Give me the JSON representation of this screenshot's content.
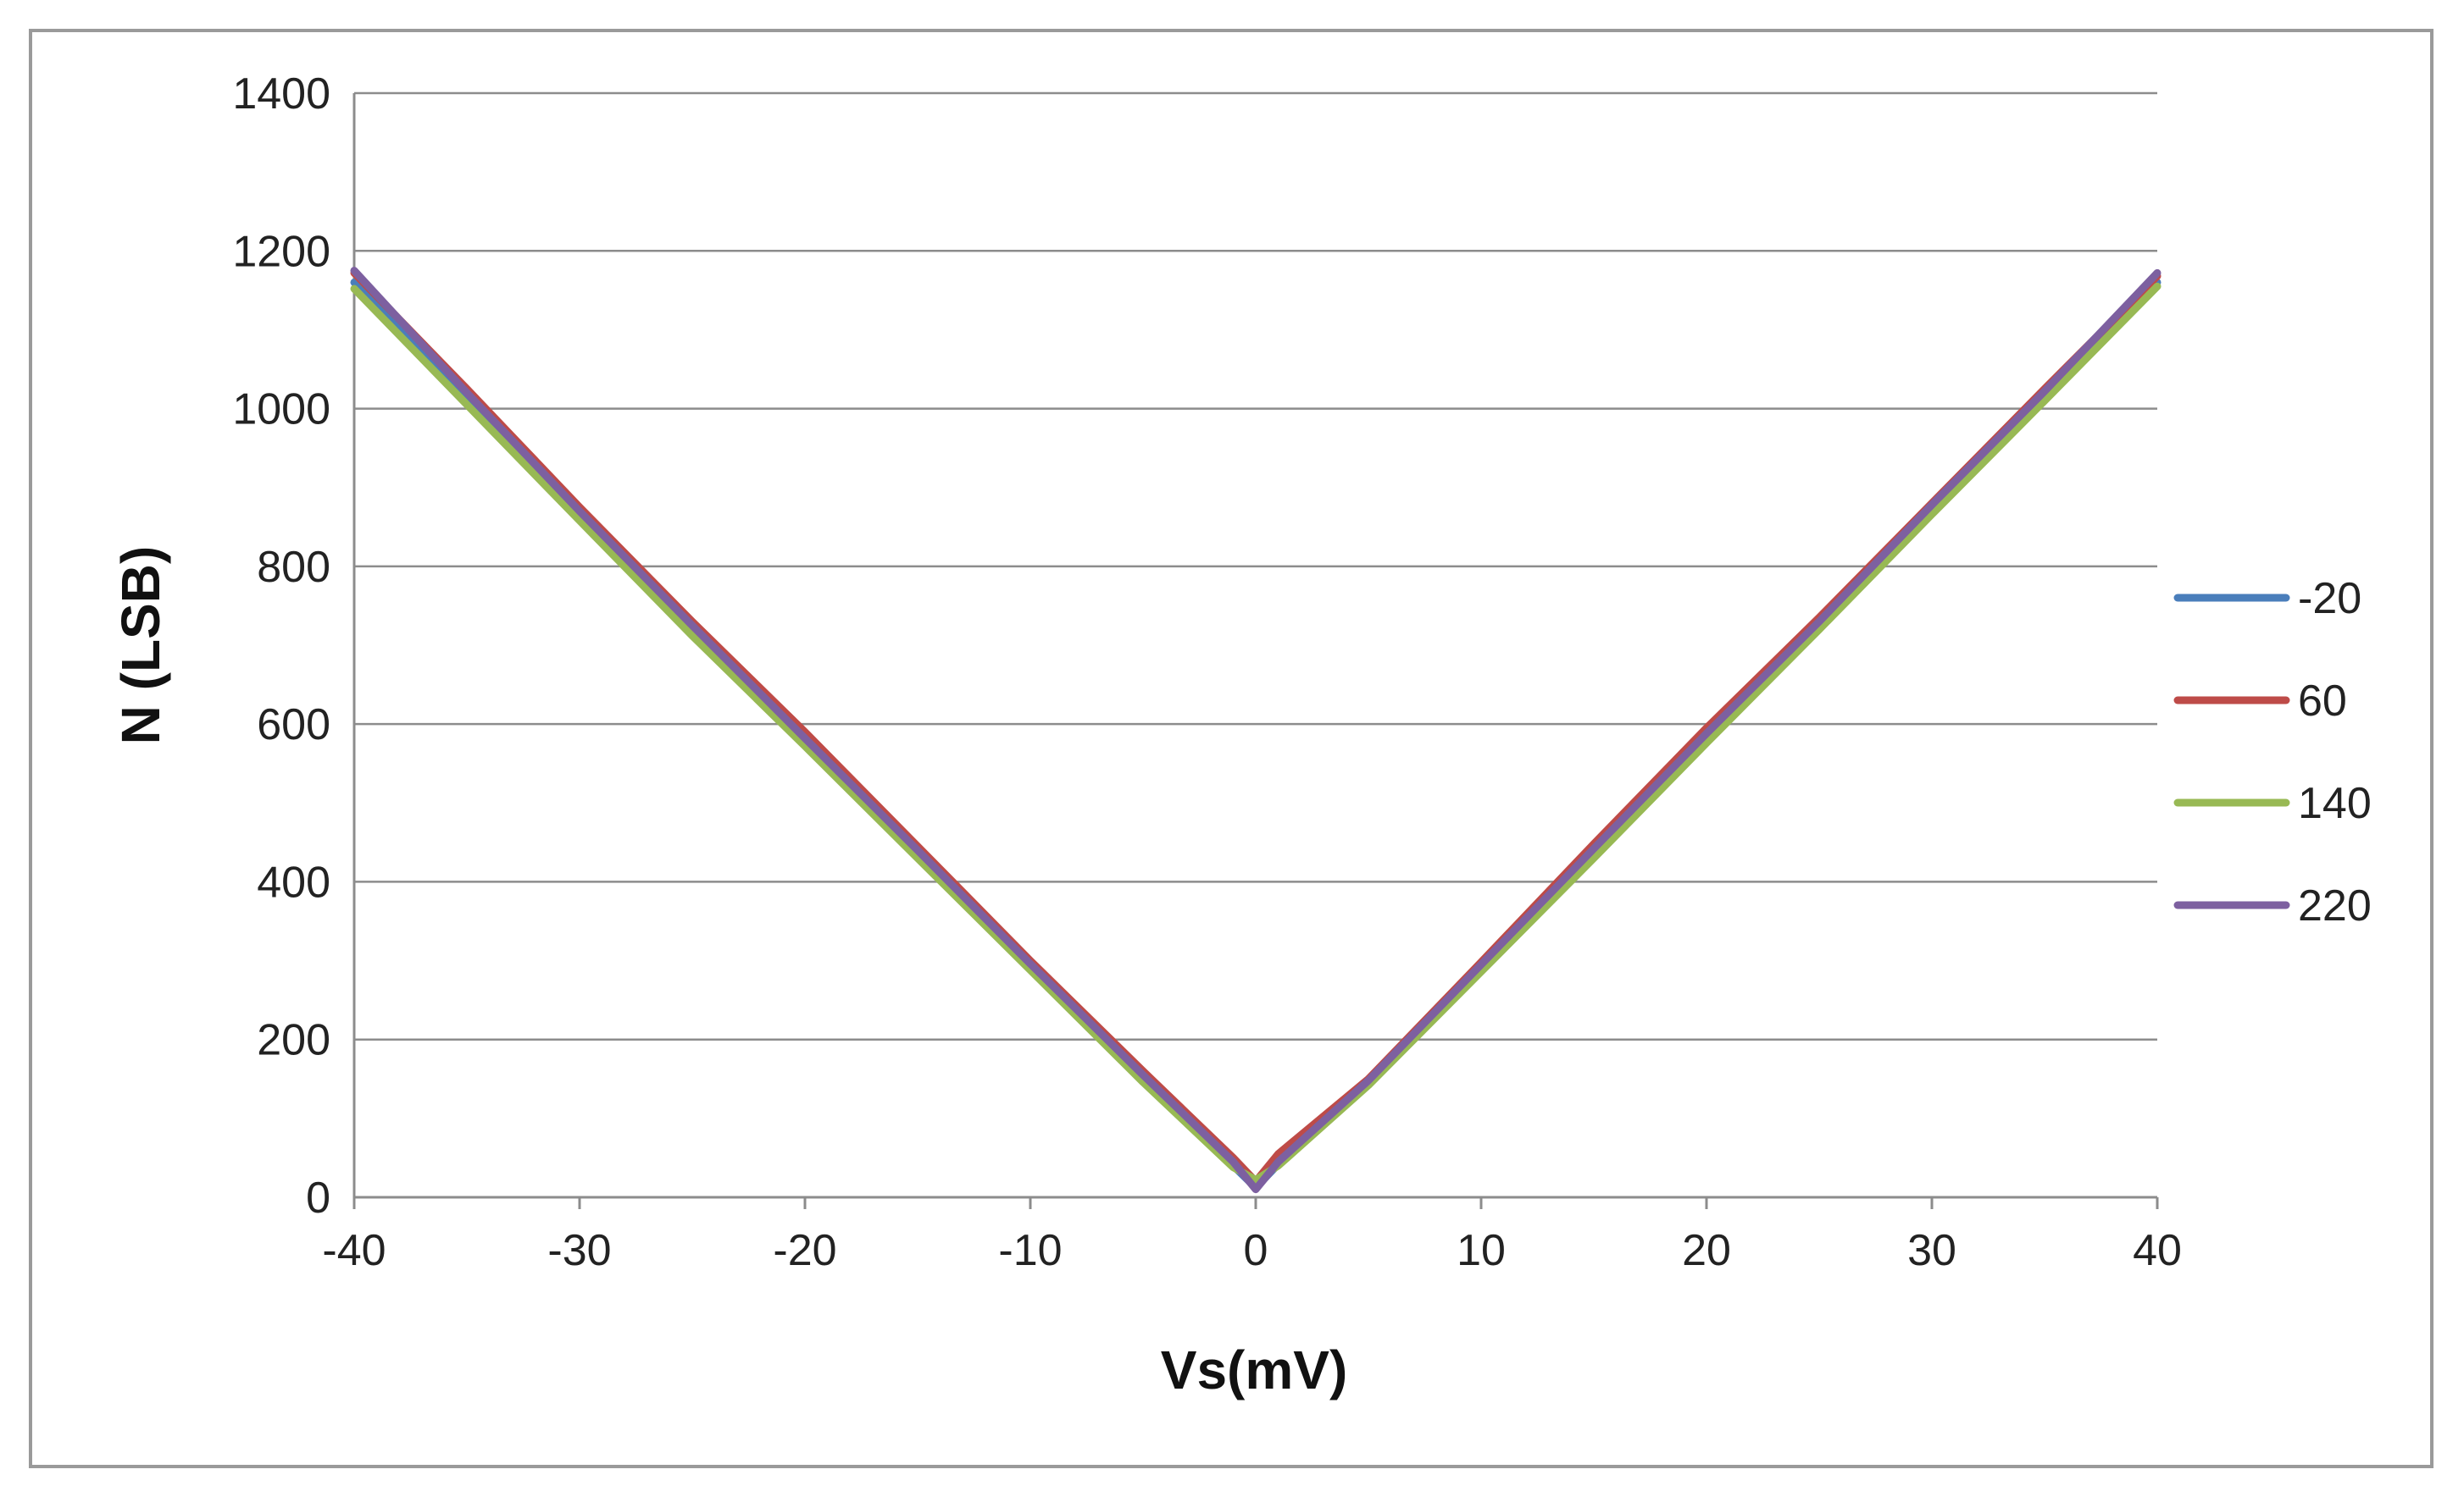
{
  "chart_data": {
    "type": "line",
    "title": "",
    "xlabel": "Vs(mV)",
    "ylabel": "N (LSB)",
    "xlim": [
      -40,
      40
    ],
    "ylim": [
      0,
      1400
    ],
    "x_ticks": [
      "-40",
      "-30",
      "-20",
      "-10",
      "0",
      "10",
      "20",
      "30",
      "40"
    ],
    "y_ticks": [
      "0",
      "200",
      "400",
      "600",
      "800",
      "1000",
      "1200",
      "1400"
    ],
    "grid": "horizontal",
    "legend_position": "right",
    "series": [
      {
        "name": "-20",
        "color": "#4a7ebb",
        "points": [
          [
            -40,
            1160
          ],
          [
            -35,
            1010
          ],
          [
            -30,
            865
          ],
          [
            -25,
            720
          ],
          [
            -20,
            578
          ],
          [
            -15,
            435
          ],
          [
            -10,
            292
          ],
          [
            -5,
            150
          ],
          [
            -1,
            40
          ],
          [
            0,
            12
          ],
          [
            1,
            42
          ],
          [
            5,
            145
          ],
          [
            10,
            290
          ],
          [
            15,
            435
          ],
          [
            20,
            580
          ],
          [
            25,
            725
          ],
          [
            30,
            870
          ],
          [
            35,
            1015
          ],
          [
            40,
            1160
          ]
        ]
      },
      {
        "name": "60",
        "color": "#be4b48",
        "points": [
          [
            -40,
            1172
          ],
          [
            -35,
            1025
          ],
          [
            -30,
            875
          ],
          [
            -25,
            730
          ],
          [
            -20,
            590
          ],
          [
            -15,
            445
          ],
          [
            -10,
            300
          ],
          [
            -5,
            160
          ],
          [
            -1,
            50
          ],
          [
            0,
            20
          ],
          [
            1,
            55
          ],
          [
            5,
            150
          ],
          [
            10,
            298
          ],
          [
            15,
            448
          ],
          [
            20,
            595
          ],
          [
            25,
            735
          ],
          [
            30,
            880
          ],
          [
            35,
            1025
          ],
          [
            40,
            1168
          ]
        ]
      },
      {
        "name": "140",
        "color": "#98b954",
        "points": [
          [
            -40,
            1152
          ],
          [
            -35,
            1005
          ],
          [
            -30,
            858
          ],
          [
            -25,
            712
          ],
          [
            -20,
            572
          ],
          [
            -15,
            430
          ],
          [
            -10,
            288
          ],
          [
            -5,
            146
          ],
          [
            -1,
            38
          ],
          [
            0,
            22
          ],
          [
            1,
            40
          ],
          [
            5,
            142
          ],
          [
            10,
            286
          ],
          [
            15,
            430
          ],
          [
            20,
            576
          ],
          [
            25,
            720
          ],
          [
            30,
            866
          ],
          [
            35,
            1010
          ],
          [
            40,
            1155
          ]
        ]
      },
      {
        "name": "220",
        "color": "#7d60a0",
        "points": [
          [
            -40,
            1175
          ],
          [
            -35,
            1020
          ],
          [
            -30,
            870
          ],
          [
            -25,
            725
          ],
          [
            -20,
            582
          ],
          [
            -15,
            440
          ],
          [
            -10,
            296
          ],
          [
            -5,
            155
          ],
          [
            -1,
            45
          ],
          [
            0,
            10
          ],
          [
            1,
            45
          ],
          [
            5,
            148
          ],
          [
            10,
            295
          ],
          [
            15,
            442
          ],
          [
            20,
            588
          ],
          [
            25,
            730
          ],
          [
            30,
            878
          ],
          [
            35,
            1022
          ],
          [
            40,
            1172
          ]
        ]
      }
    ]
  }
}
